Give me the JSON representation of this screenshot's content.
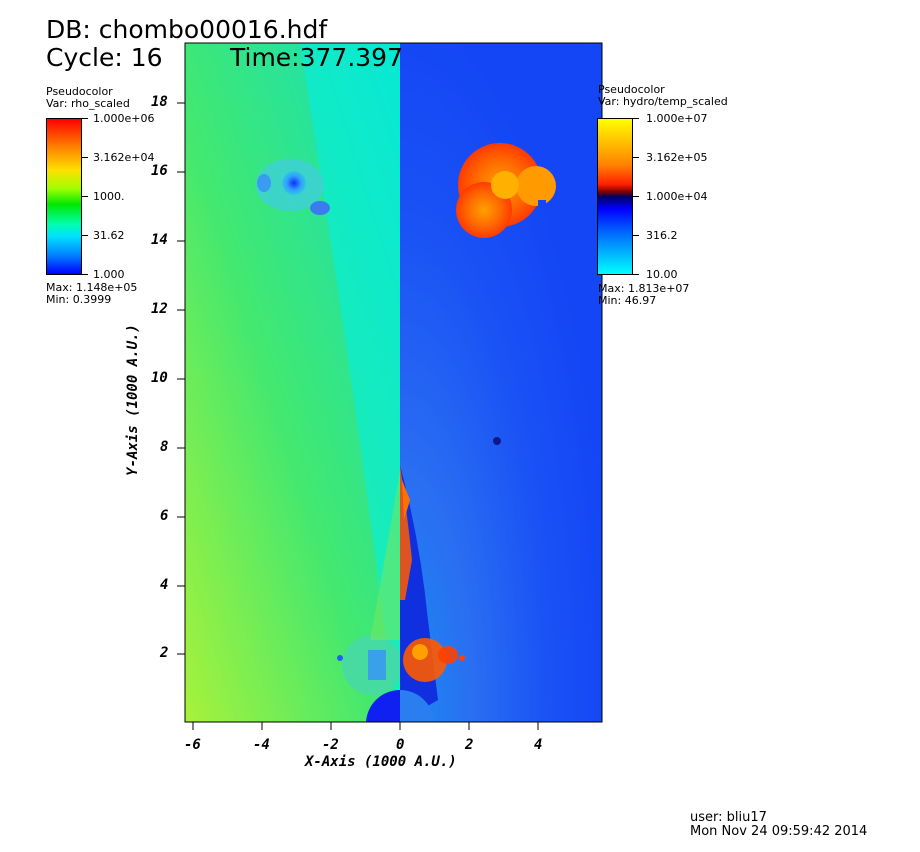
{
  "header": {
    "db_line": "DB: chombo00016.hdf",
    "cycle_line": "Cycle: 16",
    "time_line": "Time:377.397"
  },
  "legend_left": {
    "plot_type": "Pseudocolor",
    "var": "Var: rho_scaled",
    "labels": [
      "1.000e+06",
      "3.162e+04",
      "1000.",
      "31.62",
      "1.000"
    ],
    "max": "Max: 1.148e+05",
    "min": "Min: 0.3999"
  },
  "legend_right": {
    "plot_type": "Pseudocolor",
    "var": "Var: hydro/temp_scaled",
    "labels": [
      "1.000e+07",
      "3.162e+05",
      "1.000e+04",
      "316.2",
      "10.00"
    ],
    "max": "Max: 1.813e+07",
    "min": "Min: 46.97"
  },
  "axes": {
    "x_title": "X-Axis (1000 A.U.)",
    "y_title": "Y-Axis (1000 A.U.)",
    "x_ticks": [
      "-6",
      "-4",
      "-2",
      "0",
      "2",
      "4"
    ],
    "y_ticks": [
      "2",
      "4",
      "6",
      "8",
      "10",
      "12",
      "14",
      "16",
      "18"
    ]
  },
  "footer": {
    "user": "user: bliu17",
    "date": "Mon Nov 24 09:59:42 2014"
  },
  "colors": {
    "density_bg": "#3ee07a",
    "temp_bg": "#1a55f5",
    "hot": "#ff5a00"
  }
}
